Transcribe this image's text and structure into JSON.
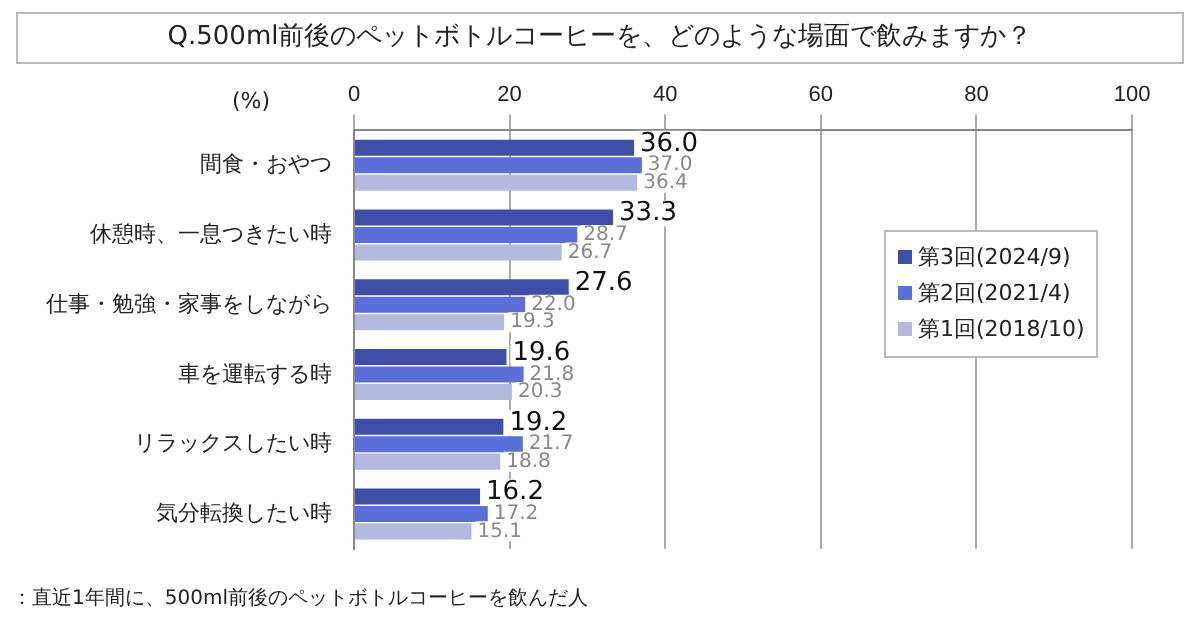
{
  "chart_data": {
    "type": "bar",
    "orientation": "horizontal",
    "title": "Q.500ml前後のペットボトルコーヒーを、どのような場面で飲みますか？",
    "xlabel": "(%)",
    "categories": [
      "間食・おやつ",
      "休憩時、一息つきたい時",
      "仕事・勉強・家事をしながら",
      "車を運転する時",
      "リラックスしたい時",
      "気分転換したい時"
    ],
    "series": [
      {
        "name": "第3回(2024/9)",
        "color": "#3f4fa8",
        "values": [
          36.0,
          33.3,
          27.6,
          19.6,
          19.2,
          16.2
        ],
        "value_labels": [
          "36.0",
          "33.3",
          "27.6",
          "19.6",
          "19.2",
          "16.2"
        ]
      },
      {
        "name": "第2回(2021/4)",
        "color": "#5b6fd8",
        "values": [
          37.0,
          28.7,
          22.0,
          21.8,
          21.7,
          17.2
        ],
        "value_labels": [
          "37.0",
          "28.7",
          "22.0",
          "21.8",
          "21.7",
          "17.2"
        ]
      },
      {
        "name": "第1回(2018/10)",
        "color": "#b4b9e0",
        "values": [
          36.4,
          26.7,
          19.3,
          20.3,
          18.8,
          15.1
        ],
        "value_labels": [
          "36.4",
          "26.7",
          "19.3",
          "20.3",
          "18.8",
          "15.1"
        ]
      }
    ],
    "xlim": [
      0,
      100
    ],
    "xticks": [
      0,
      20,
      40,
      60,
      80,
      100
    ],
    "grid": "x",
    "legend": "right",
    "annotations": [
      "：直近1年間に、500ml前後のペットボトルコーヒーを飲んだ人"
    ]
  }
}
